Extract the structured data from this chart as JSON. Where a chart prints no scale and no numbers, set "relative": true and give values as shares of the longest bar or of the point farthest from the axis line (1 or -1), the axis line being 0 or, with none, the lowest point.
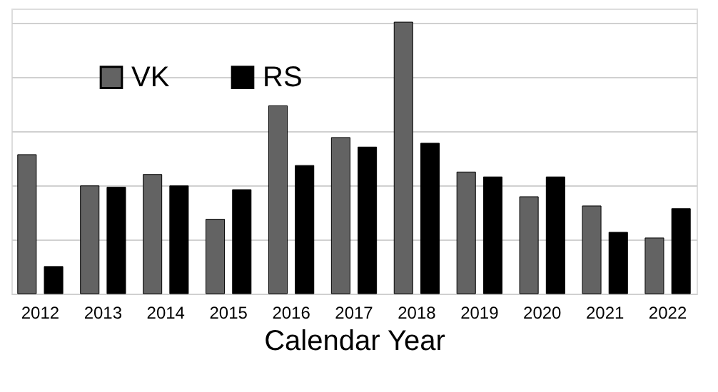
{
  "chart_data": {
    "type": "bar",
    "xlabel": "Calendar Year",
    "relative": true,
    "grid": "y",
    "legend": "top left",
    "categories": [
      "2012",
      "2013",
      "2014",
      "2015",
      "2016",
      "2017",
      "2018",
      "2019",
      "2020",
      "2021",
      "2022"
    ],
    "series": [
      {
        "name": "VK",
        "color": "#636363",
        "values": [
          0.512,
          0.397,
          0.439,
          0.274,
          0.692,
          0.575,
          1,
          0.448,
          0.357,
          0.323,
          0.205
        ]
      },
      {
        "name": "RS",
        "color": "#000000",
        "values": [
          0.1,
          0.392,
          0.397,
          0.383,
          0.472,
          0.54,
          0.554,
          0.43,
          0.43,
          0.226,
          0.313
        ]
      }
    ]
  }
}
